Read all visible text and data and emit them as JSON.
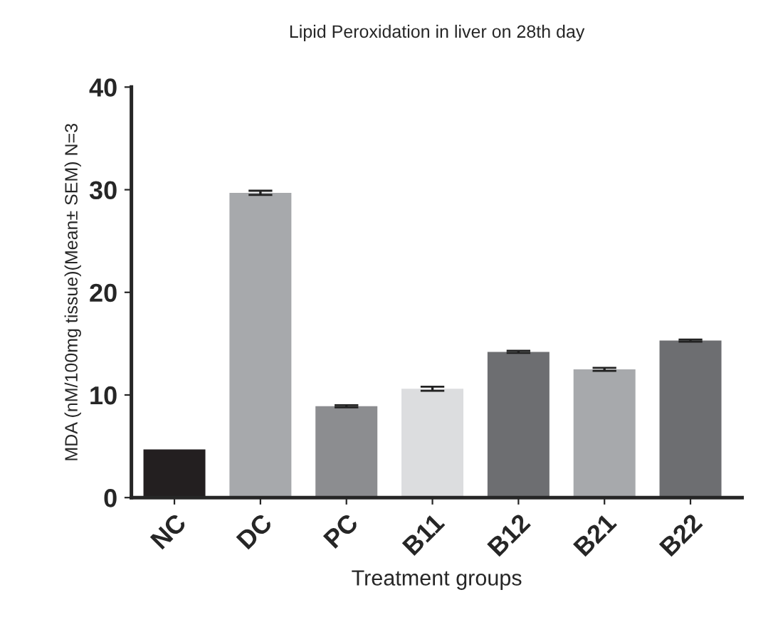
{
  "chart_data": {
    "type": "bar",
    "title": "Lipid Peroxidation in liver on 28th day",
    "xlabel": "Treatment groups",
    "ylabel": "MDA (nM/100mg tissue)(Mean± SEM) N=3",
    "categories": [
      "NC",
      "DC",
      "PC",
      "B11",
      "B12",
      "B21",
      "B22"
    ],
    "values": [
      4.7,
      29.7,
      8.9,
      10.6,
      14.2,
      12.5,
      15.3
    ],
    "errors": [
      null,
      0.2,
      0.1,
      0.2,
      0.1,
      0.15,
      0.1
    ],
    "colors": [
      "#231f20",
      "#a7a9ac",
      "#8c8d90",
      "#dcdddf",
      "#6d6e71",
      "#a7a9ac",
      "#6d6e71"
    ],
    "ylim": [
      0,
      40
    ],
    "yticks": [
      0,
      10,
      20,
      30,
      40
    ],
    "grid": false
  }
}
